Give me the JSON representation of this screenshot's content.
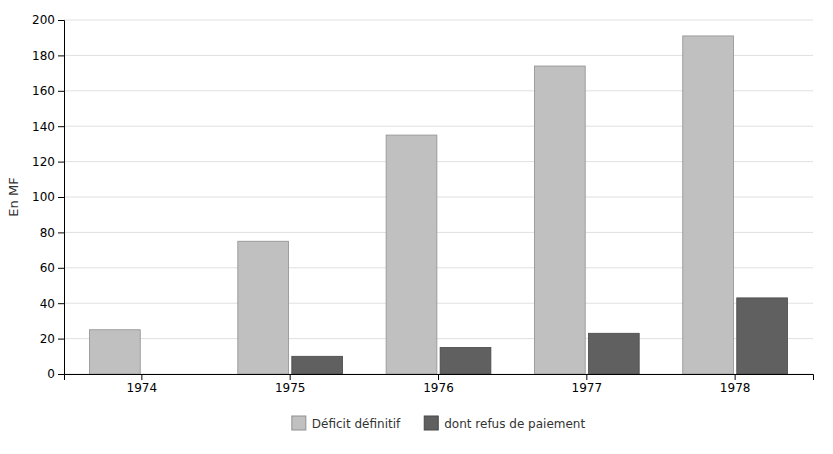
{
  "chart_data": {
    "type": "bar",
    "y_label": "En MF",
    "categories": [
      "1974",
      "1975",
      "1976",
      "1977",
      "1978"
    ],
    "series": [
      {
        "name": "Déficit définitif",
        "color": "#c0c0c0",
        "values": [
          25,
          75,
          135,
          174,
          191
        ]
      },
      {
        "name": "dont refus de paiement",
        "color": "#606060",
        "values": [
          0,
          10,
          15,
          23,
          43
        ]
      }
    ],
    "ylim": [
      0,
      200
    ],
    "yticks": [
      0,
      20,
      40,
      60,
      80,
      100,
      120,
      140,
      160,
      180,
      200
    ],
    "grid": true,
    "legend": "bottom"
  }
}
